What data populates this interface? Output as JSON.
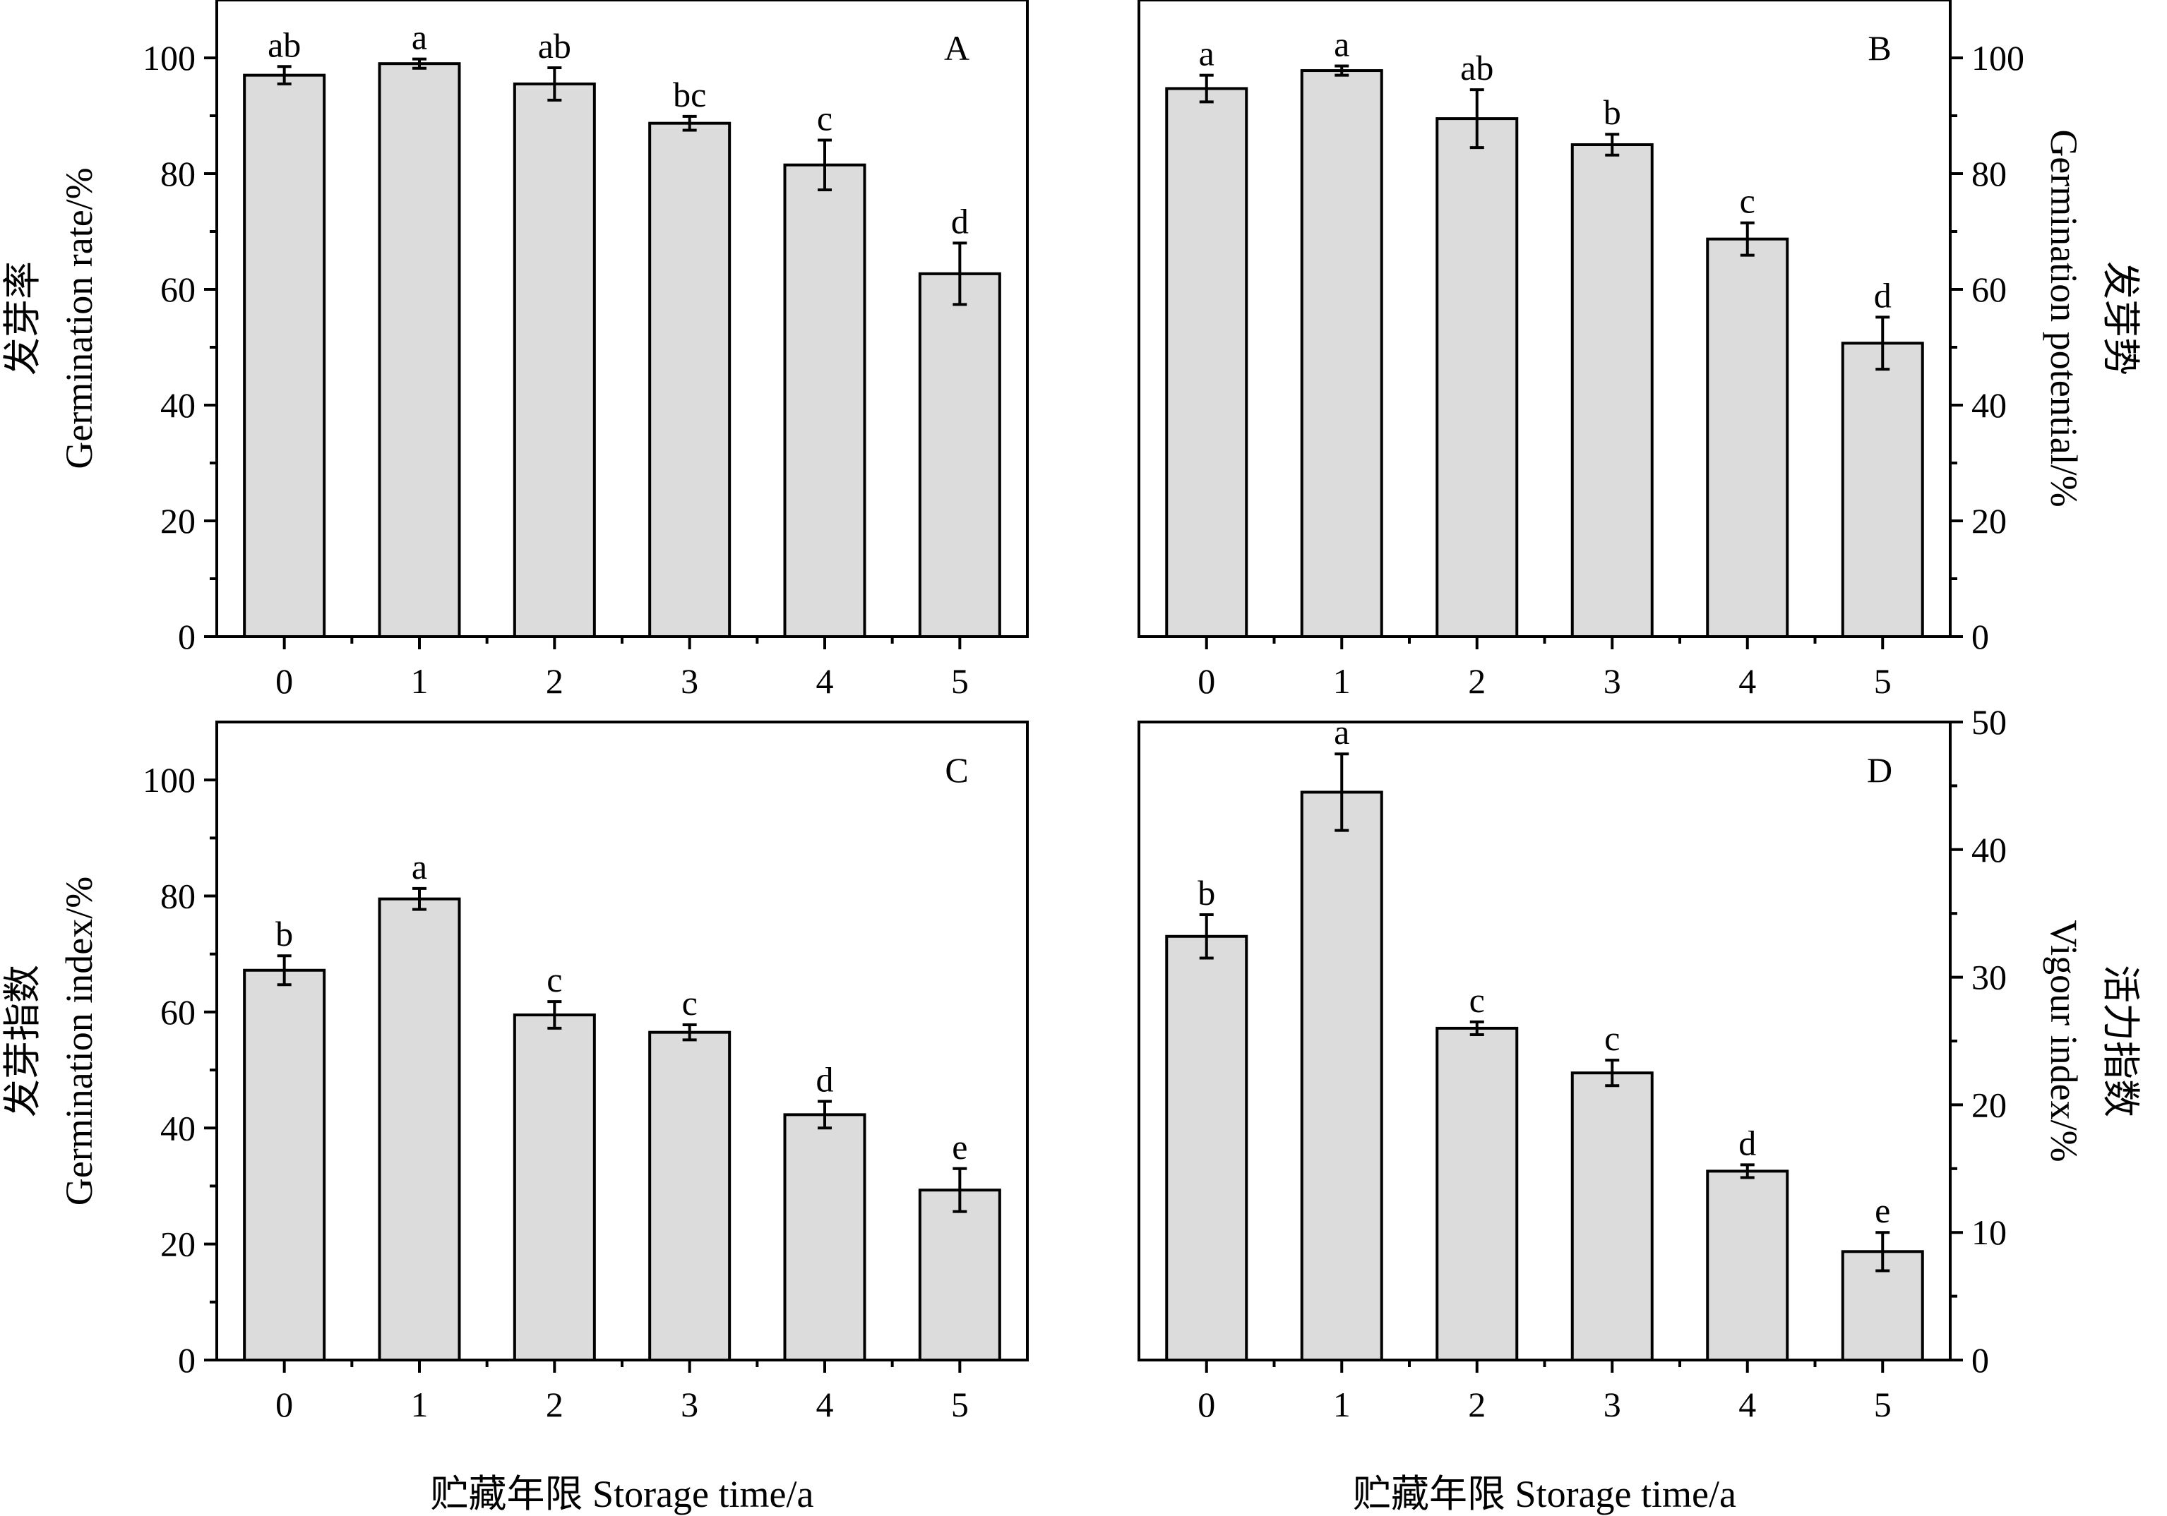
{
  "colors": {
    "bar_fill": "#dcdcdc",
    "stroke": "#000000",
    "background": "#ffffff"
  },
  "chart_data": [
    {
      "panel": "A",
      "type": "bar",
      "categories": [
        "0",
        "1",
        "2",
        "3",
        "4",
        "5"
      ],
      "values": [
        97,
        99,
        95.5,
        88.7,
        81.5,
        62.7
      ],
      "errors": [
        1.5,
        0.8,
        2.8,
        1.2,
        4.3,
        5.3
      ],
      "significance": [
        "ab",
        "a",
        "ab",
        "bc",
        "c",
        "d"
      ],
      "ylabel_cn": "发芽率",
      "ylabel": "Germination rate/%",
      "xlabel": "",
      "ylim": [
        0,
        110
      ],
      "yticks": [
        0,
        20,
        40,
        60,
        80,
        100
      ],
      "yaxis_side": "left",
      "grid": false
    },
    {
      "panel": "B",
      "type": "bar",
      "categories": [
        "0",
        "1",
        "2",
        "3",
        "4",
        "5"
      ],
      "values": [
        94.7,
        97.8,
        89.5,
        85,
        68.7,
        50.7
      ],
      "errors": [
        2.3,
        0.8,
        5,
        1.8,
        2.8,
        4.5
      ],
      "significance": [
        "a",
        "a",
        "ab",
        "b",
        "c",
        "d"
      ],
      "ylabel_cn": "发芽势",
      "ylabel": "Germination potential/%",
      "xlabel": "",
      "ylim": [
        0,
        110
      ],
      "yticks": [
        0,
        20,
        40,
        60,
        80,
        100
      ],
      "yaxis_side": "right",
      "grid": false
    },
    {
      "panel": "C",
      "type": "bar",
      "categories": [
        "0",
        "1",
        "2",
        "3",
        "4",
        "5"
      ],
      "values": [
        67.2,
        79.5,
        59.5,
        56.5,
        42.3,
        29.3
      ],
      "errors": [
        2.5,
        1.8,
        2.3,
        1.3,
        2.3,
        3.7
      ],
      "significance": [
        "b",
        "a",
        "c",
        "c",
        "d",
        "e"
      ],
      "ylabel_cn": "发芽指数",
      "ylabel": "Germination index/%",
      "xlabel": "贮藏年限 Storage time/a",
      "ylim": [
        0,
        110
      ],
      "yticks": [
        0,
        20,
        40,
        60,
        80,
        100
      ],
      "yaxis_side": "left",
      "grid": false
    },
    {
      "panel": "D",
      "type": "bar",
      "categories": [
        "0",
        "1",
        "2",
        "3",
        "4",
        "5"
      ],
      "values": [
        33.2,
        44.5,
        26,
        22.5,
        14.8,
        8.5
      ],
      "errors": [
        1.7,
        3,
        0.5,
        1,
        0.5,
        1.5
      ],
      "significance": [
        "b",
        "a",
        "c",
        "c",
        "d",
        "e"
      ],
      "ylabel_cn": "活力指数",
      "ylabel": "Vigour index/%",
      "xlabel": "贮藏年限 Storage time/a",
      "ylim": [
        0,
        50
      ],
      "yticks": [
        0,
        10,
        20,
        30,
        40,
        50
      ],
      "yaxis_side": "right",
      "grid": false
    }
  ]
}
